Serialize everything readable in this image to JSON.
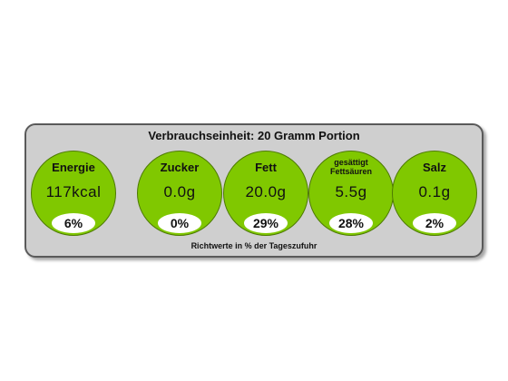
{
  "label": {
    "title": "Verbrauchseinheit: 20 Gramm Portion",
    "footnote": "Richtwerte in % der Tageszufuhr",
    "accent_color": "#80c800",
    "nutrients": [
      {
        "name": "Energie",
        "value": "117kcal",
        "percent": "6%"
      },
      {
        "name": "Zucker",
        "value": "0.0g",
        "percent": "0%"
      },
      {
        "name": "Fett",
        "value": "20.0g",
        "percent": "29%"
      },
      {
        "name_line1": "gesättigt",
        "name_line2": "Fettsäuren",
        "value": "5.5g",
        "percent": "28%"
      },
      {
        "name": "Salz",
        "value": "0.1g",
        "percent": "2%"
      }
    ]
  }
}
